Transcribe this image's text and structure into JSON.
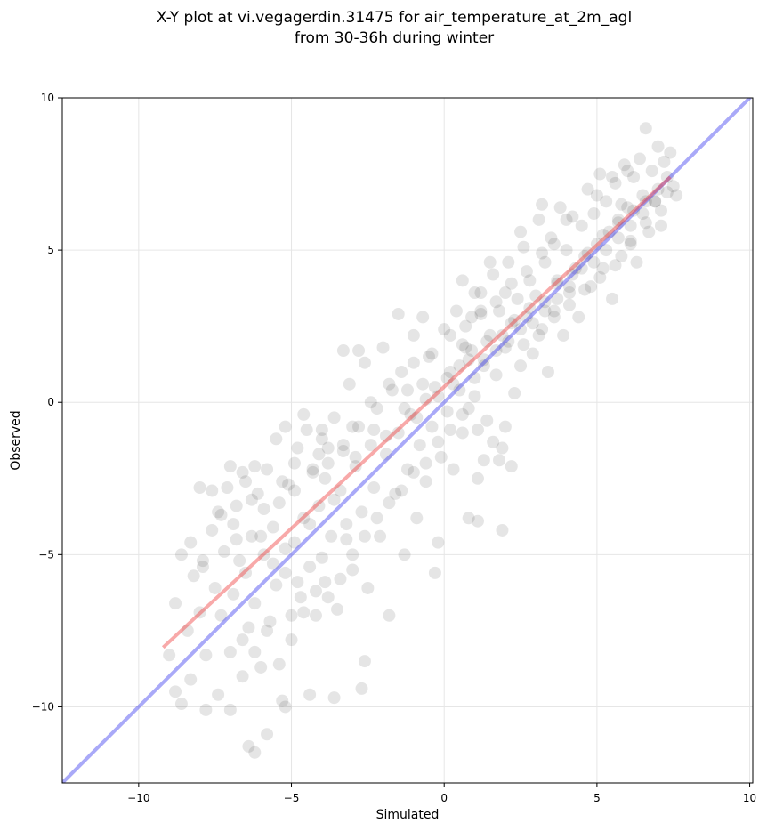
{
  "chart_data": {
    "type": "scatter",
    "title": [
      "X-Y plot at vi.vegagerdin.31475 for air_temperature_at_2m_agl",
      "from 30-36h during winter"
    ],
    "xlabel": "Simulated",
    "ylabel": "Observed",
    "xlim": [
      -12.5,
      10.1
    ],
    "ylim": [
      -12.5,
      10.0
    ],
    "x_ticks": [
      -10,
      -5,
      0,
      5,
      10
    ],
    "y_ticks": [
      -10,
      -5,
      0,
      5,
      10
    ],
    "x_tick_labels": [
      "−10",
      "−5",
      "0",
      "5",
      "10"
    ],
    "y_tick_labels": [
      "−10",
      "−5",
      "0",
      "5",
      "10"
    ],
    "grid": true,
    "point_color": "#000000",
    "point_alpha": 0.1,
    "regression_line": {
      "color": "#f04040",
      "x": [
        -9.2,
        7.4
      ],
      "y": [
        -8.05,
        7.4
      ]
    },
    "identity_line": {
      "color": "#4040f0",
      "x": [
        -12.5,
        10.1
      ],
      "y": [
        -12.5,
        10.1
      ]
    },
    "points": [
      [
        -8.8,
        -6.6
      ],
      [
        -8.6,
        -5.0
      ],
      [
        -8.4,
        -7.5
      ],
      [
        -8.2,
        -5.7
      ],
      [
        -8.0,
        -6.9
      ],
      [
        -7.9,
        -5.4
      ],
      [
        -7.8,
        -8.3
      ],
      [
        -7.6,
        -4.2
      ],
      [
        -7.5,
        -6.1
      ],
      [
        -7.4,
        -3.6
      ],
      [
        -7.3,
        -7.0
      ],
      [
        -7.2,
        -4.9
      ],
      [
        -7.1,
        -2.8
      ],
      [
        -7.0,
        -8.2
      ],
      [
        -6.9,
        -6.3
      ],
      [
        -6.8,
        -3.4
      ],
      [
        -6.7,
        -5.2
      ],
      [
        -6.6,
        -9.0
      ],
      [
        -6.5,
        -2.6
      ],
      [
        -6.4,
        -7.4
      ],
      [
        -6.3,
        -4.4
      ],
      [
        -6.2,
        -6.6
      ],
      [
        -6.1,
        -3.0
      ],
      [
        -6.0,
        -8.7
      ],
      [
        -5.9,
        -5.0
      ],
      [
        -5.8,
        -2.2
      ],
      [
        -5.7,
        -7.2
      ],
      [
        -5.6,
        -4.1
      ],
      [
        -5.5,
        -6.0
      ],
      [
        -5.4,
        -3.3
      ],
      [
        -5.3,
        -9.8
      ],
      [
        -5.2,
        -5.6
      ],
      [
        -5.1,
        -2.7
      ],
      [
        -5.0,
        -7.8
      ],
      [
        -4.9,
        -4.6
      ],
      [
        -4.8,
        -1.5
      ],
      [
        -4.7,
        -6.4
      ],
      [
        -4.6,
        -3.8
      ],
      [
        -4.5,
        -0.9
      ],
      [
        -4.4,
        -5.4
      ],
      [
        -4.3,
        -2.3
      ],
      [
        -4.2,
        -7.0
      ],
      [
        -4.1,
        -3.4
      ],
      [
        -4.0,
        -1.2
      ],
      [
        -3.9,
        -5.9
      ],
      [
        -3.8,
        -2.0
      ],
      [
        -3.7,
        -4.4
      ],
      [
        -3.6,
        -0.5
      ],
      [
        -3.5,
        -6.8
      ],
      [
        -3.4,
        -2.9
      ],
      [
        -3.3,
        -1.6
      ],
      [
        -3.2,
        -4.0
      ],
      [
        -3.1,
        0.6
      ],
      [
        -3.0,
        -5.0
      ],
      [
        -2.9,
        -2.1
      ],
      [
        -2.8,
        -0.8
      ],
      [
        -2.7,
        -3.6
      ],
      [
        -2.6,
        1.3
      ],
      [
        -2.5,
        -6.1
      ],
      [
        -2.4,
        -1.4
      ],
      [
        -2.3,
        -2.8
      ],
      [
        -2.2,
        -0.2
      ],
      [
        -2.1,
        -4.4
      ],
      [
        -2.0,
        1.8
      ],
      [
        -1.9,
        -1.7
      ],
      [
        -1.8,
        -7.0
      ],
      [
        -1.7,
        0.4
      ],
      [
        -1.6,
        -3.0
      ],
      [
        -1.5,
        -1.0
      ],
      [
        -1.4,
        1.0
      ],
      [
        -1.3,
        -5.0
      ],
      [
        -1.2,
        -2.2
      ],
      [
        -1.1,
        -0.4
      ],
      [
        -1.0,
        2.2
      ],
      [
        -0.9,
        -3.8
      ],
      [
        -0.8,
        -1.4
      ],
      [
        -0.7,
        0.6
      ],
      [
        -0.6,
        -2.6
      ],
      [
        -0.5,
        1.5
      ],
      [
        -0.4,
        -0.8
      ],
      [
        -0.3,
        -5.6
      ],
      [
        -0.2,
        0.2
      ],
      [
        -0.1,
        -1.8
      ],
      [
        0.0,
        2.4
      ],
      [
        0.1,
        -0.3
      ],
      [
        0.2,
        1.0
      ],
      [
        0.3,
        -2.2
      ],
      [
        0.4,
        3.0
      ],
      [
        0.5,
        0.4
      ],
      [
        0.6,
        -1.0
      ],
      [
        0.7,
        1.8
      ],
      [
        0.8,
        -0.2
      ],
      [
        0.9,
        2.8
      ],
      [
        1.0,
        0.8
      ],
      [
        1.1,
        -2.5
      ],
      [
        1.2,
        3.6
      ],
      [
        1.3,
        1.4
      ],
      [
        1.4,
        -0.6
      ],
      [
        1.5,
        2.2
      ],
      [
        1.6,
        4.2
      ],
      [
        1.7,
        0.9
      ],
      [
        1.8,
        3.0
      ],
      [
        1.9,
        -1.5
      ],
      [
        2.0,
        1.8
      ],
      [
        2.1,
        4.6
      ],
      [
        2.2,
        2.6
      ],
      [
        2.3,
        0.3
      ],
      [
        2.4,
        3.4
      ],
      [
        2.5,
        1.2
      ],
      [
        2.6,
        5.1
      ],
      [
        2.7,
        2.8
      ],
      [
        2.8,
        4.0
      ],
      [
        2.9,
        1.6
      ],
      [
        3.0,
        3.5
      ],
      [
        3.1,
        6.0
      ],
      [
        3.2,
        2.4
      ],
      [
        3.3,
        4.6
      ],
      [
        3.4,
        1.0
      ],
      [
        3.5,
        5.4
      ],
      [
        3.6,
        3.0
      ],
      [
        3.7,
        4.0
      ],
      [
        3.8,
        6.4
      ],
      [
        3.9,
        2.2
      ],
      [
        4.0,
        5.0
      ],
      [
        4.1,
        3.6
      ],
      [
        4.2,
        6.1
      ],
      [
        4.3,
        4.4
      ],
      [
        4.4,
        2.8
      ],
      [
        4.5,
        5.8
      ],
      [
        4.6,
        4.8
      ],
      [
        4.7,
        7.0
      ],
      [
        4.8,
        3.8
      ],
      [
        4.9,
        6.2
      ],
      [
        5.0,
        5.2
      ],
      [
        5.1,
        7.5
      ],
      [
        5.2,
        4.4
      ],
      [
        5.3,
        6.6
      ],
      [
        5.4,
        5.6
      ],
      [
        5.5,
        3.4
      ],
      [
        5.6,
        7.2
      ],
      [
        5.7,
        6.0
      ],
      [
        5.8,
        4.8
      ],
      [
        5.9,
        7.8
      ],
      [
        6.0,
        6.4
      ],
      [
        6.1,
        5.2
      ],
      [
        6.2,
        7.4
      ],
      [
        6.3,
        4.6
      ],
      [
        6.4,
        8.0
      ],
      [
        6.5,
        6.8
      ],
      [
        6.6,
        9.0
      ],
      [
        6.7,
        5.6
      ],
      [
        6.8,
        7.6
      ],
      [
        6.9,
        6.6
      ],
      [
        7.0,
        8.4
      ],
      [
        7.1,
        5.8
      ],
      [
        7.2,
        7.9
      ],
      [
        7.3,
        6.9
      ],
      [
        7.4,
        8.2
      ],
      [
        7.5,
        7.1
      ],
      [
        7.6,
        6.8
      ],
      [
        -8.0,
        -2.8
      ],
      [
        -7.6,
        -2.9
      ],
      [
        -7.0,
        -2.1
      ],
      [
        -6.6,
        -2.3
      ],
      [
        -6.2,
        -2.1
      ],
      [
        -6.4,
        -11.3
      ],
      [
        -6.2,
        -11.5
      ],
      [
        -5.8,
        -10.9
      ],
      [
        -7.0,
        -10.1
      ],
      [
        -7.8,
        -10.1
      ],
      [
        -7.4,
        -9.6
      ],
      [
        -5.2,
        -10.0
      ],
      [
        -4.4,
        -9.6
      ],
      [
        -3.6,
        -9.7
      ],
      [
        -2.7,
        -9.4
      ],
      [
        -2.6,
        -8.5
      ],
      [
        -8.8,
        -9.5
      ],
      [
        -8.6,
        -9.9
      ],
      [
        -9.0,
        -8.3
      ],
      [
        -8.3,
        -9.1
      ],
      [
        1.1,
        -0.9
      ],
      [
        1.3,
        -1.9
      ],
      [
        1.6,
        -1.3
      ],
      [
        1.8,
        -1.9
      ],
      [
        2.0,
        -0.8
      ],
      [
        2.2,
        -2.1
      ],
      [
        1.9,
        -4.2
      ],
      [
        1.1,
        -3.9
      ],
      [
        0.8,
        -3.8
      ],
      [
        -0.2,
        -4.6
      ],
      [
        -1.5,
        2.9
      ],
      [
        -2.8,
        1.7
      ],
      [
        -3.3,
        1.7
      ],
      [
        -0.7,
        2.8
      ],
      [
        0.6,
        4.0
      ],
      [
        1.0,
        3.6
      ],
      [
        1.5,
        4.6
      ],
      [
        2.5,
        5.6
      ],
      [
        3.2,
        6.5
      ],
      [
        4.0,
        6.0
      ],
      [
        -4.6,
        -0.4
      ],
      [
        -5.2,
        -0.8
      ],
      [
        -4.1,
        -1.7
      ],
      [
        -3.8,
        -1.5
      ],
      [
        -4.9,
        -2.0
      ],
      [
        -5.5,
        -1.2
      ],
      [
        -4.0,
        -0.9
      ],
      [
        -3.0,
        -0.8
      ],
      [
        -2.4,
        0.0
      ],
      [
        -1.8,
        0.6
      ],
      [
        -1.2,
        0.4
      ],
      [
        -0.6,
        0.1
      ],
      [
        0.3,
        0.6
      ],
      [
        0.8,
        1.4
      ],
      [
        1.4,
        2.0
      ],
      [
        1.9,
        2.2
      ],
      [
        2.3,
        2.7
      ],
      [
        2.8,
        3.1
      ],
      [
        3.3,
        3.3
      ],
      [
        3.7,
        3.9
      ],
      [
        4.2,
        4.2
      ],
      [
        4.7,
        4.9
      ],
      [
        5.2,
        5.5
      ],
      [
        5.7,
        5.9
      ],
      [
        6.2,
        6.3
      ],
      [
        6.6,
        6.6
      ],
      [
        7.0,
        7.0
      ],
      [
        2.0,
        3.6
      ],
      [
        1.2,
        2.9
      ],
      [
        0.6,
        1.9
      ],
      [
        2.6,
        1.9
      ],
      [
        3.1,
        2.2
      ],
      [
        3.6,
        2.8
      ],
      [
        4.1,
        3.2
      ],
      [
        4.6,
        3.7
      ],
      [
        5.1,
        4.1
      ],
      [
        5.6,
        4.5
      ],
      [
        6.1,
        5.3
      ],
      [
        6.6,
        5.9
      ],
      [
        7.1,
        6.3
      ],
      [
        -1.0,
        1.3
      ],
      [
        -0.4,
        1.6
      ],
      [
        0.2,
        2.2
      ],
      [
        0.7,
        2.5
      ],
      [
        1.2,
        3.0
      ],
      [
        1.7,
        3.3
      ],
      [
        2.2,
        3.9
      ],
      [
        2.7,
        4.3
      ],
      [
        3.2,
        4.9
      ],
      [
        3.6,
        5.2
      ],
      [
        -6.8,
        -4.5
      ],
      [
        -6.5,
        -5.6
      ],
      [
        -6.0,
        -4.4
      ],
      [
        -5.6,
        -5.3
      ],
      [
        -5.2,
        -4.8
      ],
      [
        -4.8,
        -5.9
      ],
      [
        -4.4,
        -4.0
      ],
      [
        -4.0,
        -5.1
      ],
      [
        -3.6,
        -3.2
      ],
      [
        -3.2,
        -4.5
      ],
      [
        -6.6,
        -7.8
      ],
      [
        -6.2,
        -8.2
      ],
      [
        -5.8,
        -7.5
      ],
      [
        -5.4,
        -8.6
      ],
      [
        -5.0,
        -7.0
      ],
      [
        -4.6,
        -6.9
      ],
      [
        -4.2,
        -6.2
      ],
      [
        -3.8,
        -6.4
      ],
      [
        -3.4,
        -5.8
      ],
      [
        -3.0,
        -5.5
      ],
      [
        -2.6,
        -4.4
      ],
      [
        -2.2,
        -3.8
      ],
      [
        -1.8,
        -3.3
      ],
      [
        -1.4,
        -2.9
      ],
      [
        -1.0,
        -2.3
      ],
      [
        -0.6,
        -2.0
      ],
      [
        -0.2,
        -1.3
      ],
      [
        0.2,
        -0.9
      ],
      [
        0.6,
        -0.4
      ],
      [
        1.0,
        0.2
      ],
      [
        -8.3,
        -4.6
      ],
      [
        -7.9,
        -5.2
      ],
      [
        -7.3,
        -3.7
      ],
      [
        -6.9,
        -4.0
      ],
      [
        -6.3,
        -3.2
      ],
      [
        -5.9,
        -3.5
      ],
      [
        -5.3,
        -2.6
      ],
      [
        -4.9,
        -2.9
      ],
      [
        -4.3,
        -2.2
      ],
      [
        -3.9,
        -2.5
      ],
      [
        -3.3,
        -1.4
      ],
      [
        -2.9,
        -1.8
      ],
      [
        -2.3,
        -0.9
      ],
      [
        -1.9,
        -1.1
      ],
      [
        -1.3,
        -0.2
      ],
      [
        -0.9,
        -0.5
      ],
      [
        -0.3,
        0.5
      ],
      [
        0.1,
        0.8
      ],
      [
        0.5,
        1.2
      ],
      [
        0.9,
        1.7
      ],
      [
        1.3,
        1.2
      ],
      [
        1.7,
        1.7
      ],
      [
        2.1,
        2.0
      ],
      [
        2.5,
        2.4
      ],
      [
        2.9,
        2.6
      ],
      [
        3.3,
        3.0
      ],
      [
        3.7,
        3.4
      ],
      [
        4.1,
        3.8
      ],
      [
        4.5,
        4.4
      ],
      [
        4.9,
        4.6
      ],
      [
        5.3,
        5.0
      ],
      [
        5.7,
        5.4
      ],
      [
        6.1,
        5.8
      ],
      [
        6.5,
        6.2
      ],
      [
        6.9,
        6.6
      ],
      [
        7.3,
        7.4
      ],
      [
        5.0,
        6.8
      ],
      [
        5.5,
        7.4
      ],
      [
        6.0,
        7.6
      ],
      [
        5.8,
        6.5
      ]
    ]
  }
}
